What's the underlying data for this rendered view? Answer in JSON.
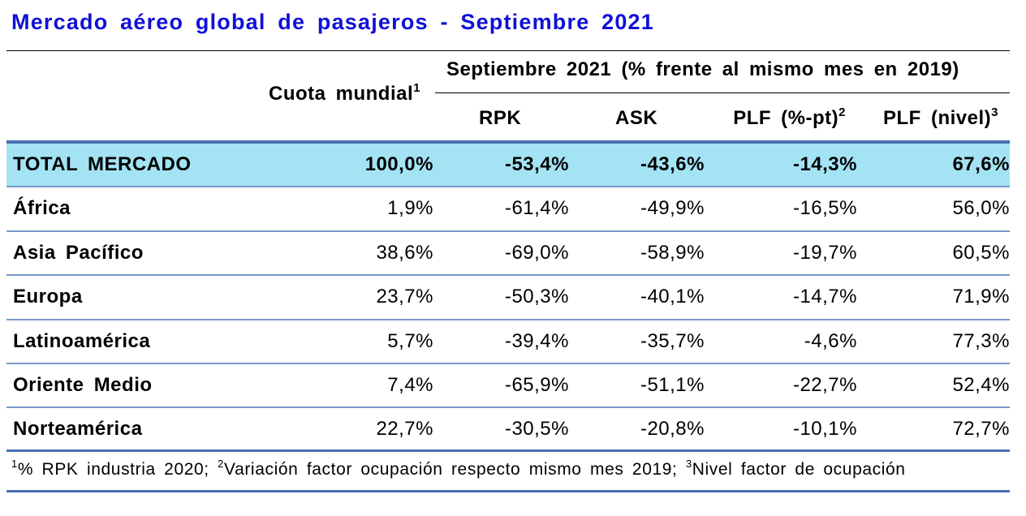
{
  "title": "Mercado aéreo global de pasajeros - Septiembre 2021",
  "header": {
    "share_label": "Cuota mundial",
    "share_sup": "1",
    "group_label": "Septiembre 2021 (% frente al mismo mes en 2019)",
    "rpk": "RPK",
    "ask": "ASK",
    "plf_pt": "PLF (%-pt)",
    "plf_pt_sup": "2",
    "plf_level": "PLF (nivel)",
    "plf_level_sup": "3"
  },
  "rows": [
    {
      "name": "TOTAL MERCADO",
      "share": "100,0%",
      "rpk": "-53,4%",
      "ask": "-43,6%",
      "plf_pt": "-14,3%",
      "plf_level": "67,6%"
    },
    {
      "name": "África",
      "share": "1,9%",
      "rpk": "-61,4%",
      "ask": "-49,9%",
      "plf_pt": "-16,5%",
      "plf_level": "56,0%"
    },
    {
      "name": "Asia Pacífico",
      "share": "38,6%",
      "rpk": "-69,0%",
      "ask": "-58,9%",
      "plf_pt": "-19,7%",
      "plf_level": "60,5%"
    },
    {
      "name": "Europa",
      "share": "23,7%",
      "rpk": "-50,3%",
      "ask": "-40,1%",
      "plf_pt": "-14,7%",
      "plf_level": "71,9%"
    },
    {
      "name": "Latinoamérica",
      "share": "5,7%",
      "rpk": "-39,4%",
      "ask": "-35,7%",
      "plf_pt": "-4,6%",
      "plf_level": "77,3%"
    },
    {
      "name": "Oriente Medio",
      "share": "7,4%",
      "rpk": "-65,9%",
      "ask": "-51,1%",
      "plf_pt": "-22,7%",
      "plf_level": "52,4%"
    },
    {
      "name": "Norteamérica",
      "share": "22,7%",
      "rpk": "-30,5%",
      "ask": "-20,8%",
      "plf_pt": "-10,1%",
      "plf_level": "72,7%"
    }
  ],
  "footnote": {
    "n1": "1",
    "t1": "% RPK industria 2020; ",
    "n2": "2",
    "t2": "Variación factor ocupación respecto mismo mes 2019; ",
    "n3": "3",
    "t3": "Nivel factor de ocupación"
  },
  "colors": {
    "title": "#1010d8",
    "total_row_bg": "#a3e3f4",
    "rule_blue": "#4a6fb5",
    "row_rule": "#7b96c9"
  }
}
